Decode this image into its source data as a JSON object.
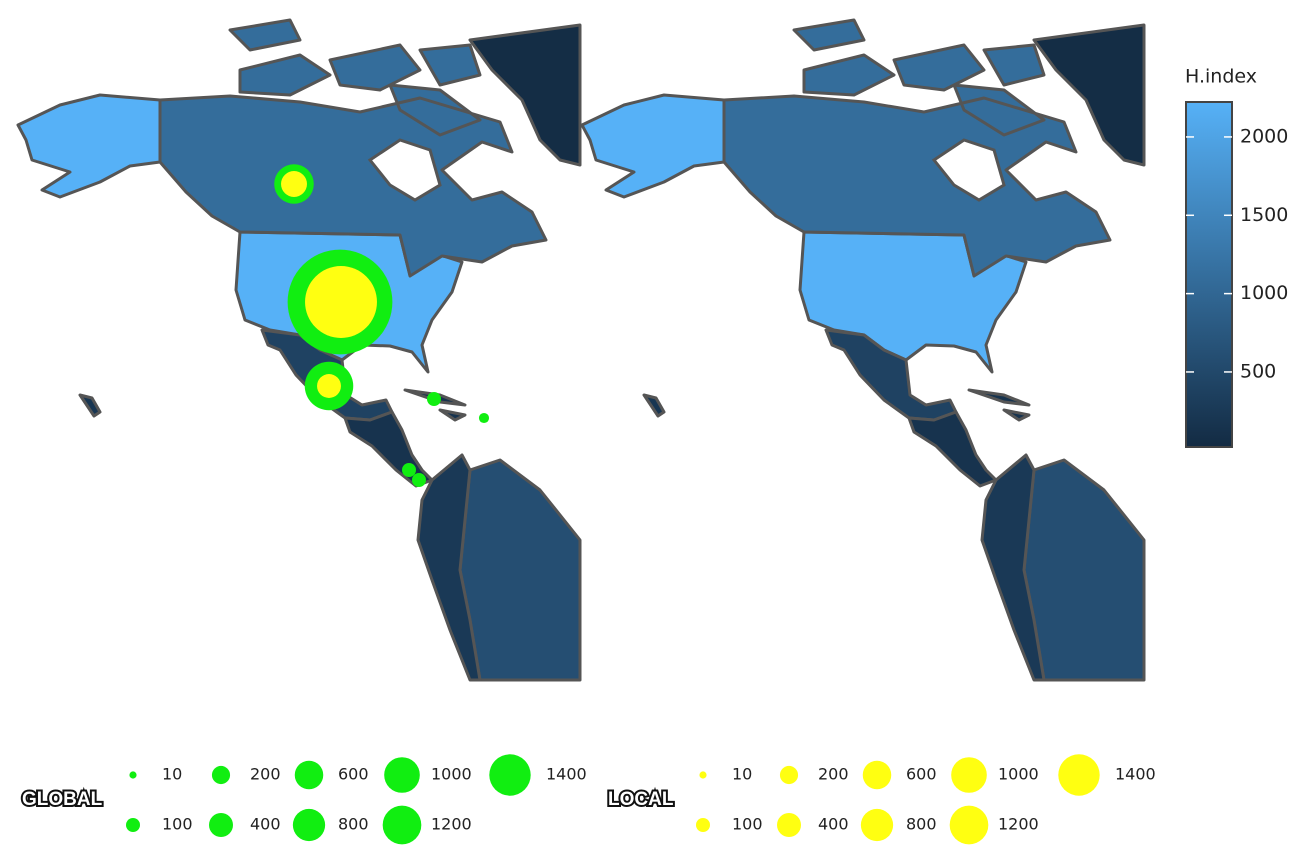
{
  "color_legend": {
    "title": "H.index",
    "lim": [
      21,
      2223
    ],
    "ticks": [
      500,
      1000,
      1500,
      2000
    ],
    "low_color": "#132b43",
    "high_color": "#56b1f7"
  },
  "regions": [
    2223,
    1100,
    50,
    400,
    150,
    600,
    250,
    200
  ],
  "chart_data": [
    {
      "type": "map",
      "size_legend_title": "GLOBAL",
      "color": "#11ee11",
      "size_legend": [
        10,
        100,
        200,
        400,
        600,
        800,
        1000,
        1200,
        1400
      ],
      "sizes": [
        200,
        1400,
        300,
        25,
        13,
        25,
        25
      ]
    },
    {
      "type": "map",
      "size_legend_title": "LOCAL",
      "color": "#ffff11",
      "size_legend": [
        10,
        100,
        200,
        400,
        600,
        800,
        1000,
        1200,
        1400
      ],
      "sizes": [
        86,
        660,
        73
      ]
    }
  ]
}
